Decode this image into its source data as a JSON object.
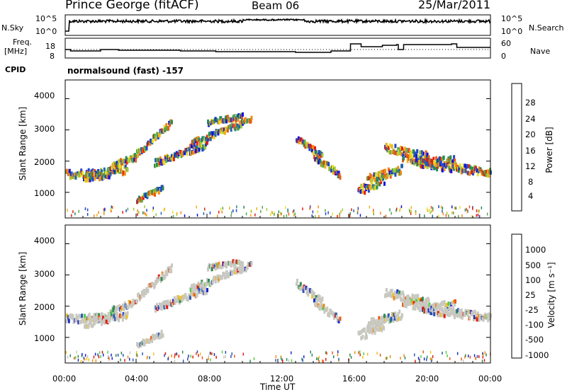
{
  "header": {
    "station": "Prince George (fitACF)",
    "beam": "Beam 06",
    "date": "25/Mar/2011"
  },
  "noise_panel": {
    "left_label": "N.Sky",
    "right_label": "N.Search",
    "left_ticks": [
      "10^5",
      "10^0"
    ],
    "right_ticks": [
      "10^5",
      "10^0"
    ]
  },
  "freq_panel": {
    "left_label_1": "Freq.",
    "left_label_2": "[MHz]",
    "right_label": "Nave",
    "left_ticks": [
      "18",
      "8"
    ],
    "right_ticks": [
      "60",
      "0"
    ]
  },
  "cpid": {
    "label": "CPID",
    "value": "normalsound (fast) -157"
  },
  "chart_data": [
    {
      "type": "heatmap",
      "title": "Power",
      "ylabel": "Slant Range [km]",
      "xlabel": "Time UT",
      "ylim": [
        180,
        4600
      ],
      "yticks": [
        1000,
        2000,
        3000,
        4000
      ],
      "colorbar": {
        "label": "Power [dB]",
        "ticks": [
          "4",
          "8",
          "12",
          "16",
          "20",
          "24",
          "28"
        ],
        "colors": [
          "#1010e0",
          "#2244cc",
          "#2266aa",
          "#2a8a55",
          "#55a84a",
          "#9fcc3a",
          "#e6e028",
          "#f2b01c",
          "#f08a18",
          "#ea5a16",
          "#e02010"
        ]
      }
    },
    {
      "type": "heatmap",
      "title": "Velocity",
      "ylabel": "Slant Range [km]",
      "xlabel": "Time UT",
      "ylim": [
        180,
        4600
      ],
      "yticks": [
        1000,
        2000,
        3000,
        4000
      ],
      "colorbar": {
        "label": "Velocity [m s⁻¹]",
        "ticks": [
          "1000",
          "500",
          "100",
          "25",
          "-25",
          "-100",
          "-500",
          "-1000"
        ],
        "colors": [
          "#1a2ad0",
          "#2b55b8",
          "#2e8a52",
          "#55cc44",
          "#c8c8c0",
          "#f0c020",
          "#f08a18",
          "#ea5a16",
          "#e01a10"
        ]
      }
    }
  ],
  "x_axis": {
    "ticks": [
      "00:00",
      "04:00",
      "08:00",
      "12:00",
      "16:00",
      "20:00",
      "00:00"
    ],
    "label": "Time UT"
  }
}
